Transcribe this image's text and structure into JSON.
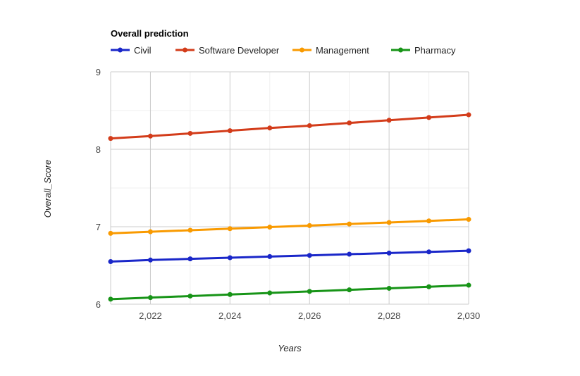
{
  "chart_data": {
    "type": "line",
    "title": "Overall prediction",
    "xlabel": "Years",
    "ylabel": "Overall_Score",
    "x": [
      2021,
      2022,
      2023,
      2024,
      2025,
      2026,
      2027,
      2028,
      2029,
      2030
    ],
    "xlim": [
      2021,
      2030
    ],
    "ylim": [
      6,
      9
    ],
    "x_ticks": [
      2022,
      2024,
      2026,
      2028,
      2030
    ],
    "x_tick_labels": [
      "2,022",
      "2,024",
      "2,026",
      "2,028",
      "2,030"
    ],
    "y_ticks": [
      6,
      7,
      8,
      9
    ],
    "y_tick_labels": [
      "6",
      "7",
      "8",
      "9"
    ],
    "grid": true,
    "legend_position": "top",
    "series": [
      {
        "name": "Civil",
        "color": "#1a27c9",
        "values": [
          6.55,
          6.57,
          6.585,
          6.6,
          6.615,
          6.63,
          6.645,
          6.66,
          6.675,
          6.69
        ]
      },
      {
        "name": "Software Developer",
        "color": "#d33c1a",
        "values": [
          8.14,
          8.17,
          8.205,
          8.24,
          8.275,
          8.305,
          8.34,
          8.375,
          8.41,
          8.445
        ]
      },
      {
        "name": "Management",
        "color": "#f99a00",
        "values": [
          6.915,
          6.935,
          6.955,
          6.975,
          6.995,
          7.015,
          7.035,
          7.055,
          7.075,
          7.095
        ]
      },
      {
        "name": "Pharmacy",
        "color": "#179417",
        "values": [
          6.065,
          6.085,
          6.105,
          6.125,
          6.145,
          6.165,
          6.185,
          6.205,
          6.225,
          6.245
        ]
      }
    ]
  }
}
